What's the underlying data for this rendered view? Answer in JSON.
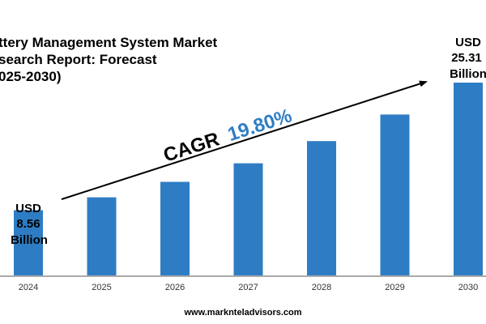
{
  "title_lines": [
    "ttery Management System Market",
    "search Report: Forecast",
    "025-2030)"
  ],
  "cagr": {
    "label": "CAGR",
    "value": "19.80%"
  },
  "start_label": [
    "USD",
    "8.56",
    "Billion"
  ],
  "end_label": [
    "USD",
    "25.31",
    "Billion"
  ],
  "website": "www.marknteladvisors.com",
  "colors": {
    "bar": "#2e7dc4",
    "cagr_value": "#2e7dc4",
    "text": "#000000",
    "axis": "#555555"
  },
  "chart_data": {
    "type": "bar",
    "categories": [
      "2024",
      "2025",
      "2026",
      "2027",
      "2028",
      "2029",
      "2030"
    ],
    "values": [
      8.56,
      10.25,
      12.28,
      14.72,
      17.63,
      21.12,
      25.31
    ],
    "title": "",
    "xlabel": "",
    "ylabel": "",
    "ylim": [
      0,
      30
    ],
    "grid": false,
    "legend": "none"
  }
}
